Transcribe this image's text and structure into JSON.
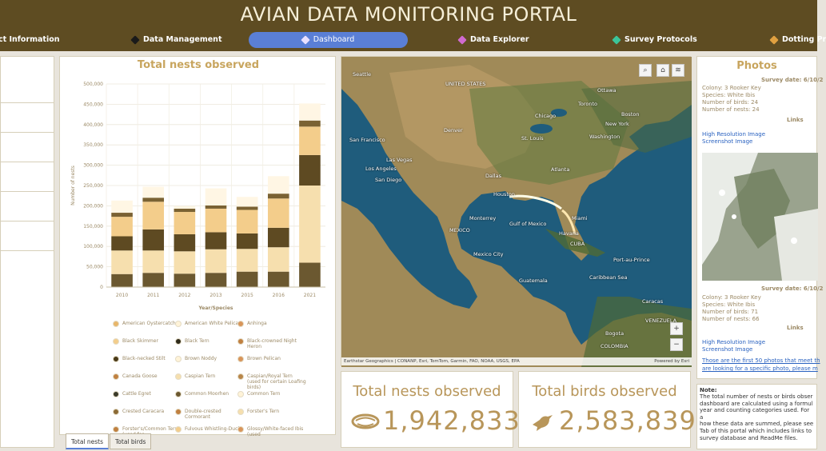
{
  "header": {
    "title": "AVIAN DATA MONITORING PORTAL",
    "nav": [
      {
        "label": "ct Information",
        "icon": "none",
        "color": ""
      },
      {
        "label": "Data Management",
        "icon": "pin-icon",
        "color": "#1a1a1a"
      },
      {
        "label": "Dashboard",
        "icon": "pin-icon",
        "color": "#e9e0ff"
      },
      {
        "label": "Data Explorer",
        "icon": "pin-icon",
        "color": "#d06ad0"
      },
      {
        "label": "Survey Protocols",
        "icon": "pin-icon",
        "color": "#3bc59a"
      },
      {
        "label": "Dotting Pr",
        "icon": "pin-icon",
        "color": "#e0a040"
      }
    ]
  },
  "chart": {
    "title": "Total nests observed",
    "ylabel": "Number of nests",
    "xlabel": "Year/Species",
    "yticks": [
      "0",
      "50,000",
      "100,000",
      "150,000",
      "200,000",
      "250,000",
      "300,000",
      "350,000",
      "400,000",
      "450,000",
      "500,000"
    ]
  },
  "chart_data": {
    "type": "bar",
    "stacked": true,
    "categories": [
      "2010",
      "2011",
      "2012",
      "2013",
      "2015",
      "2016",
      "2021"
    ],
    "ylim": [
      0,
      500000
    ],
    "series": [
      {
        "name": "",
        "color": "#6b5830",
        "values": [
          32000,
          35000,
          33000,
          35000,
          38000,
          38000,
          60000
        ]
      },
      {
        "name": "",
        "color": "#f6dfae",
        "values": [
          58000,
          55000,
          55000,
          58000,
          56000,
          60000,
          190000
        ]
      },
      {
        "name": "",
        "color": "#5e4a22",
        "values": [
          35000,
          52000,
          42000,
          42000,
          38000,
          48000,
          75000
        ]
      },
      {
        "name": "",
        "color": "#f3cd8b",
        "values": [
          48000,
          68000,
          55000,
          58000,
          58000,
          72000,
          70000
        ]
      },
      {
        "name": "",
        "color": "#7a6233",
        "values": [
          10000,
          10000,
          8000,
          8000,
          8000,
          12000,
          15000
        ]
      },
      {
        "name": "",
        "color": "#fff6e4",
        "values": [
          30000,
          27000,
          6000,
          42000,
          24000,
          43000,
          42000
        ]
      }
    ]
  },
  "legend": [
    {
      "label": "American Oystercatcher",
      "color": "#e8b66a"
    },
    {
      "label": "American White Pelican",
      "color": "#fff3d8"
    },
    {
      "label": "Anhinga",
      "color": "#d8955a"
    },
    {
      "label": "Black Skimmer",
      "color": "#f3cd8b"
    },
    {
      "label": "Black Tern",
      "color": "#2e2a1a"
    },
    {
      "label": "Black-crowned Night Heron",
      "color": "#c08040"
    },
    {
      "label": "Black-necked Stilt",
      "color": "#4a3a18"
    },
    {
      "label": "Brown Noddy",
      "color": "#fff3d8"
    },
    {
      "label": "Brown Pelican",
      "color": "#d8955a"
    },
    {
      "label": "Canada Goose",
      "color": "#c08040"
    },
    {
      "label": "Caspian Tern",
      "color": "#f6dfae"
    },
    {
      "label": "Caspian/Royal Tern (used for certain Loafing birds)",
      "color": "#b8864a"
    },
    {
      "label": "Cattle Egret",
      "color": "#3b3b2a"
    },
    {
      "label": "Common Moorhen",
      "color": "#6b5830"
    },
    {
      "label": "Common Tern",
      "color": "#fff3d8"
    },
    {
      "label": "Crested Caracara",
      "color": "#8b6a35"
    },
    {
      "label": "Double-crested Cormorant",
      "color": "#c08040"
    },
    {
      "label": "Forster's Tern",
      "color": "#f6dfae"
    },
    {
      "label": "Forster's/Common Tern (used for",
      "color": "#c08040"
    },
    {
      "label": "Fulvous Whistling-Duck",
      "color": "#f3cd8b"
    },
    {
      "label": "Glossy/White-faced Ibis (used",
      "color": "#d8955a"
    }
  ],
  "tabs": [
    {
      "label": "Total nests"
    },
    {
      "label": "Total birds"
    }
  ],
  "map": {
    "labels": [
      {
        "t": "Seattle"
      },
      {
        "t": "UNITED STATES"
      },
      {
        "t": "Denver"
      },
      {
        "t": "San Francisco"
      },
      {
        "t": "Las Vegas"
      },
      {
        "t": "Los Angeles"
      },
      {
        "t": "San Diego"
      },
      {
        "t": "Chicago"
      },
      {
        "t": "Toronto"
      },
      {
        "t": "Ottawa"
      },
      {
        "t": "Boston"
      },
      {
        "t": "New York"
      },
      {
        "t": "Washington"
      },
      {
        "t": "St. Louis"
      },
      {
        "t": "Dallas"
      },
      {
        "t": "Houston"
      },
      {
        "t": "Atlanta"
      },
      {
        "t": "Miami"
      },
      {
        "t": "Havana"
      },
      {
        "t": "CUBA"
      },
      {
        "t": "Monterrey"
      },
      {
        "t": "MEXICO"
      },
      {
        "t": "Mexico City"
      },
      {
        "t": "Gulf of Mexico"
      },
      {
        "t": "Guatemala"
      },
      {
        "t": "Port-au-Prince"
      },
      {
        "t": "Caribbean Sea"
      },
      {
        "t": "Caracas"
      },
      {
        "t": "Bogota"
      },
      {
        "t": "COLOMBIA"
      },
      {
        "t": "VENEZUELA"
      }
    ],
    "attribution": "Earthstar Geographics | CONANP, Esri, TomTom, Garmin, FAO, NOAA, USGS, EPA",
    "powered": "Powered by Esri",
    "zoom_in": "+",
    "zoom_out": "−"
  },
  "kpis": {
    "nests_title": "Total nests observed",
    "nests_value": "1,942,833",
    "birds_title": "Total birds observed",
    "birds_value": "2,583,839"
  },
  "photos": {
    "title": "Photos",
    "entries": [
      {
        "date": "Survey date: 6/10/2",
        "colony": "Colony: 3 Rooker Key",
        "species": "Species: White Ibis",
        "birds": "Number of birds: 24",
        "nests": "Number of nests: 24",
        "links_head": "Links",
        "link1": "High Resolution Image",
        "link2": "Screenshot Image"
      },
      {
        "date": "Survey date: 6/10/2",
        "colony": "Colony: 3 Rooker Key",
        "species": "Species: White Ibis",
        "birds": "Number of birds: 71",
        "nests": "Number of nests: 66",
        "links_head": "Links",
        "link1": "High Resolution Image",
        "link2": "Screenshot Image"
      }
    ],
    "footer_line1": "Those are the first 50 photos that meet th",
    "footer_line2": "are looking for a specific photo, please m"
  },
  "note": {
    "heading": "Note:",
    "lines": [
      "The total number of nests or birds obser",
      "dashboard are calculated using a formul",
      "year and counting categories used. For a",
      "how these data are summed, please see",
      "Tab of this portal which includes links to",
      "survey database and ReadMe files."
    ]
  }
}
